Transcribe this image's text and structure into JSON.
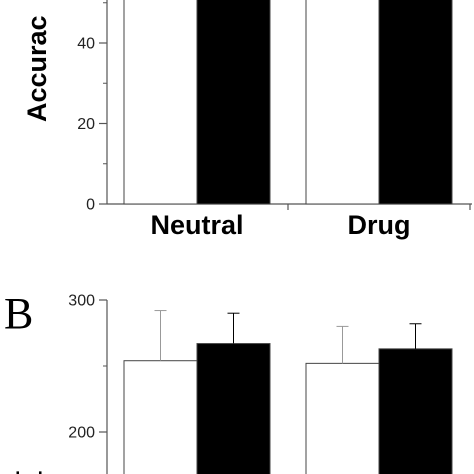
{
  "panel_b_letter": "B",
  "chart_data": [
    {
      "type": "bar",
      "title": "",
      "xlabel": "",
      "ylabel": "Accurac",
      "categories": [
        "Neutral",
        "Drug"
      ],
      "yticks": [
        0,
        20,
        40
      ],
      "ylim": [
        0,
        60
      ],
      "grid": false,
      "series": [
        {
          "values": [
            60,
            60
          ],
          "color": "#ffffff"
        },
        {
          "values": [
            60,
            60
          ],
          "color": "#000000"
        }
      ]
    },
    {
      "type": "bar",
      "title": "",
      "xlabel": "",
      "ylabel": "",
      "categories": [
        "",
        ""
      ],
      "yticks": [
        200,
        300
      ],
      "ylim": [
        160,
        300
      ],
      "grid": false,
      "series": [
        {
          "values": [
            254,
            252
          ],
          "errors": [
            38,
            28
          ],
          "color": "#ffffff"
        },
        {
          "values": [
            267,
            263
          ],
          "errors": [
            23,
            19
          ],
          "color": "#000000"
        }
      ]
    }
  ]
}
